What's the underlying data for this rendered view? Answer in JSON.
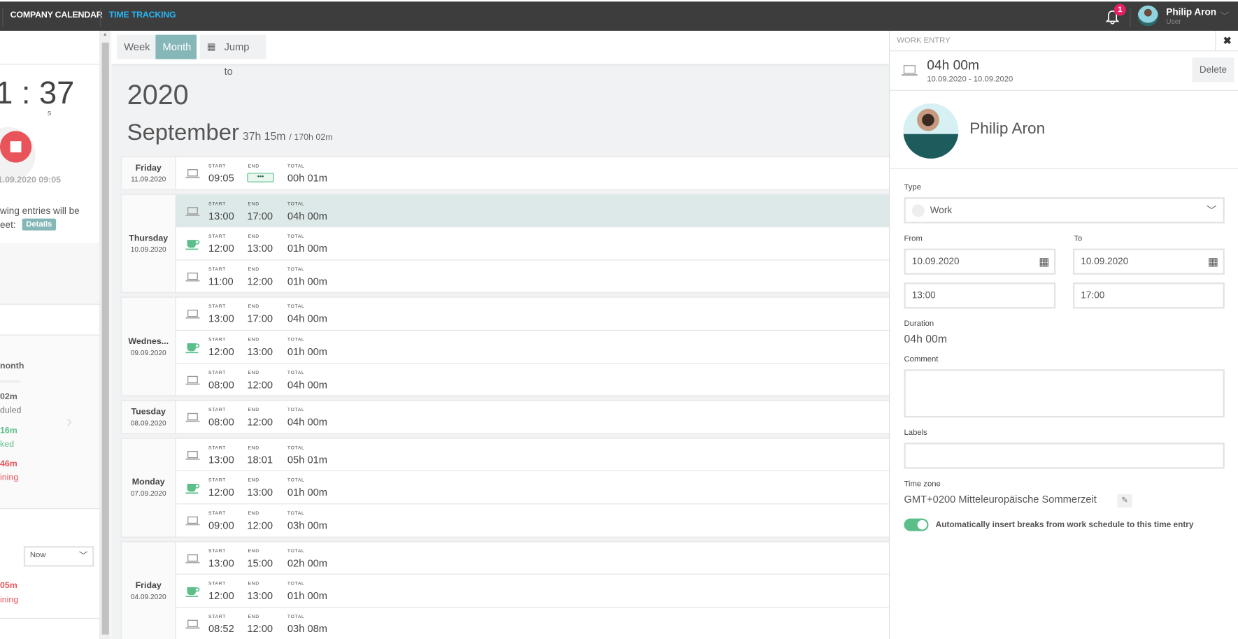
{
  "topbar": {
    "nav": [
      "COMPANY CALENDAR",
      "TIME TRACKING"
    ],
    "notifications": "1",
    "user_name": "Philip Aron",
    "user_role": "User",
    "accent": "#29b6f6"
  },
  "left": {
    "timer": "1 : 37",
    "timer_unit": "s",
    "started": "1.09.2020 09:05",
    "notice_line1": "wing entries will be",
    "notice_line2": "eet:",
    "details_label": "Details",
    "month_title": "nonth",
    "scheduled_value": "02m",
    "scheduled_label": "duled",
    "worked_value": "16m",
    "worked_label": "ked",
    "remaining_value": "46m",
    "remaining_label": "ining",
    "period_select": "Now",
    "period_remaining_value": "05m",
    "period_remaining_label": "ining"
  },
  "toolbar": {
    "week": "Week",
    "month": "Month",
    "jump": "Jump to"
  },
  "main": {
    "year": "2020",
    "month": "September",
    "month_total": "37h 15m",
    "month_target": "/ 170h 02m",
    "labels": {
      "start": "START",
      "end": "END",
      "total": "TOTAL"
    },
    "days": [
      {
        "name": "Friday",
        "date": "11.09.2020",
        "entries": [
          {
            "type": "work",
            "start": "09:05",
            "end": "running",
            "total": "00h 01m"
          }
        ]
      },
      {
        "name": "Thursday",
        "date": "10.09.2020",
        "entries": [
          {
            "type": "work",
            "start": "13:00",
            "end": "17:00",
            "total": "04h 00m",
            "selected": true
          },
          {
            "type": "break",
            "start": "12:00",
            "end": "13:00",
            "total": "01h 00m"
          },
          {
            "type": "work",
            "start": "11:00",
            "end": "12:00",
            "total": "01h 00m"
          }
        ]
      },
      {
        "name": "Wednes...",
        "date": "09.09.2020",
        "entries": [
          {
            "type": "work",
            "start": "13:00",
            "end": "17:00",
            "total": "04h 00m"
          },
          {
            "type": "break",
            "start": "12:00",
            "end": "13:00",
            "total": "01h 00m"
          },
          {
            "type": "work",
            "start": "08:00",
            "end": "12:00",
            "total": "04h 00m"
          }
        ]
      },
      {
        "name": "Tuesday",
        "date": "08.09.2020",
        "entries": [
          {
            "type": "work",
            "start": "08:00",
            "end": "12:00",
            "total": "04h 00m"
          }
        ]
      },
      {
        "name": "Monday",
        "date": "07.09.2020",
        "entries": [
          {
            "type": "work",
            "start": "13:00",
            "end": "18:01",
            "total": "05h 01m"
          },
          {
            "type": "break",
            "start": "12:00",
            "end": "13:00",
            "total": "01h 00m"
          },
          {
            "type": "work",
            "start": "09:00",
            "end": "12:00",
            "total": "03h 00m"
          }
        ]
      },
      {
        "name": "Friday",
        "date": "04.09.2020",
        "entries": [
          {
            "type": "work",
            "start": "13:00",
            "end": "15:00",
            "total": "02h 00m"
          },
          {
            "type": "break",
            "start": "12:00",
            "end": "13:00",
            "total": "01h 00m"
          },
          {
            "type": "work",
            "start": "08:52",
            "end": "12:00",
            "total": "03h 08m"
          }
        ]
      }
    ]
  },
  "panel": {
    "title": "WORK ENTRY",
    "duration": "04h 00m",
    "range": "10.09.2020 - 10.09.2020",
    "delete": "Delete",
    "user": "Philip Aron",
    "type_label": "Type",
    "type_value": "Work",
    "from_label": "From",
    "to_label": "To",
    "from_date": "10.09.2020",
    "to_date": "10.09.2020",
    "from_time": "13:00",
    "to_time": "17:00",
    "duration_label": "Duration",
    "duration_value": "04h 00m",
    "comment_label": "Comment",
    "comment_value": "",
    "labels_label": "Labels",
    "labels_value": "",
    "timezone_label": "Time zone",
    "timezone_value": "GMT+0200 Mitteleuropäische Sommerzeit",
    "auto_breaks": "Automatically insert breaks from work schedule to this time entry",
    "auto_breaks_on": true
  },
  "colors": {
    "teal": "#86b7b8",
    "green": "#5cbf8a",
    "red": "#e9545a",
    "selected_row": "#dde9e8"
  }
}
